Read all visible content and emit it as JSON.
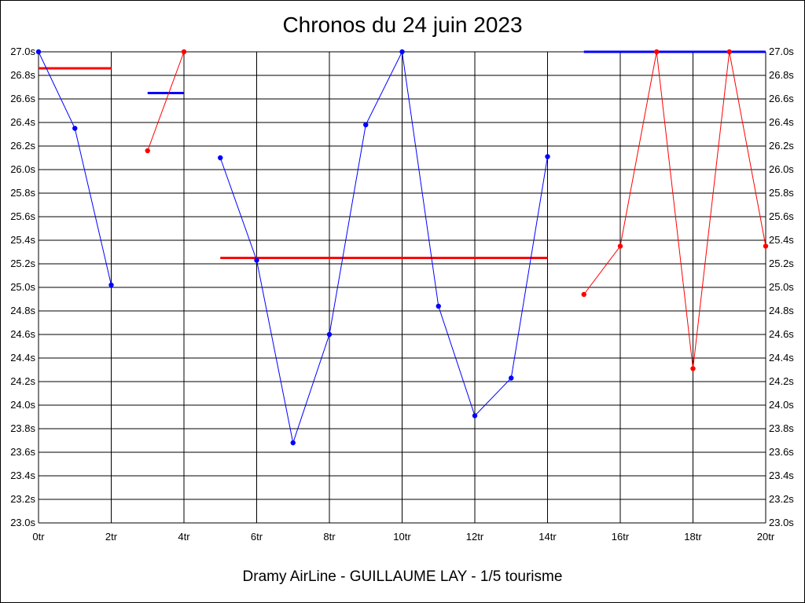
{
  "chart_data": {
    "type": "line",
    "title": "Chronos du 24 juin 2023",
    "subtitle": "Dramy AirLine - GUILLAUME LAY - 1/5 tourisme",
    "xlabel": "",
    "ylabel": "",
    "xlim": [
      0,
      20
    ],
    "ylim": [
      23.0,
      27.0
    ],
    "x_ticks": [
      0,
      2,
      4,
      6,
      8,
      10,
      12,
      14,
      16,
      18,
      20
    ],
    "x_tick_labels": [
      "0tr",
      "2tr",
      "4tr",
      "6tr",
      "8tr",
      "10tr",
      "12tr",
      "14tr",
      "16tr",
      "18tr",
      "20tr"
    ],
    "y_ticks": [
      23.0,
      23.2,
      23.4,
      23.6,
      23.8,
      24.0,
      24.2,
      24.4,
      24.6,
      24.8,
      25.0,
      25.2,
      25.4,
      25.6,
      25.8,
      26.0,
      26.2,
      26.4,
      26.6,
      26.8,
      27.0
    ],
    "y_tick_labels": [
      "23.0s",
      "23.2s",
      "23.4s",
      "23.6s",
      "23.8s",
      "24.0s",
      "24.2s",
      "24.4s",
      "24.6s",
      "24.8s",
      "25.0s",
      "25.2s",
      "25.4s",
      "25.6s",
      "25.8s",
      "26.0s",
      "26.2s",
      "26.4s",
      "26.6s",
      "26.8s",
      "27.0s"
    ],
    "grid": true,
    "legend": "none",
    "y_labels_both_sides": true,
    "series": [
      {
        "color": "#0000ff",
        "x": [
          0,
          1,
          2
        ],
        "y": [
          27.0,
          26.35,
          25.02
        ]
      },
      {
        "color": "#ff0000",
        "x": [
          3,
          4
        ],
        "y": [
          26.16,
          27.0
        ]
      },
      {
        "color": "#0000ff",
        "x": [
          5,
          6,
          7,
          8,
          9,
          10,
          11,
          12,
          13,
          14
        ],
        "y": [
          26.1,
          25.23,
          23.68,
          24.6,
          26.38,
          27.0,
          24.84,
          23.91,
          24.23,
          26.11
        ]
      },
      {
        "color": "#ff0000",
        "x": [
          15,
          16,
          17,
          18,
          19,
          20
        ],
        "y": [
          24.94,
          25.35,
          27.0,
          24.31,
          27.0,
          25.35
        ]
      }
    ],
    "average_lines": [
      {
        "color": "#ff0000",
        "x": [
          0,
          2
        ],
        "y": 26.86
      },
      {
        "color": "#0000ff",
        "x": [
          3,
          4
        ],
        "y": 26.65
      },
      {
        "color": "#ff0000",
        "x": [
          5,
          14
        ],
        "y": 25.25
      },
      {
        "color": "#0000ff",
        "x": [
          15,
          20
        ],
        "y": 27.0
      }
    ]
  }
}
